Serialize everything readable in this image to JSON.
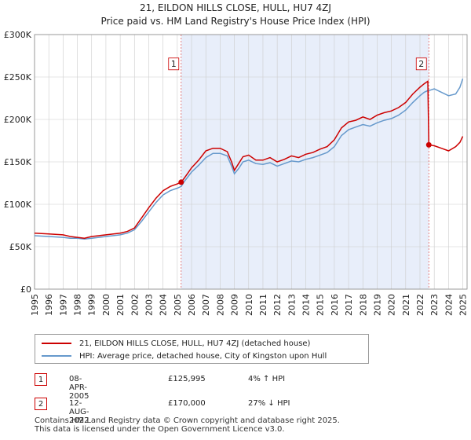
{
  "chart_data": {
    "type": "line",
    "title": "21, EILDON HILLS CLOSE, HULL, HU7 4ZJ",
    "subtitle": "Price paid vs. HM Land Registry's House Price Index (HPI)",
    "xlim": [
      1995,
      2025.3
    ],
    "ylim": [
      0,
      300000
    ],
    "x_ticks": [
      "1995",
      "1996",
      "1997",
      "1998",
      "1999",
      "2000",
      "2001",
      "2002",
      "2003",
      "2004",
      "2005",
      "2006",
      "2007",
      "2008",
      "2009",
      "2010",
      "2011",
      "2012",
      "2013",
      "2014",
      "2015",
      "2016",
      "2017",
      "2018",
      "2019",
      "2020",
      "2021",
      "2022",
      "2023",
      "2024",
      "2025"
    ],
    "y_ticks": [
      {
        "value": 0,
        "label": "£0"
      },
      {
        "value": 50000,
        "label": "£50K"
      },
      {
        "value": 100000,
        "label": "£100K"
      },
      {
        "value": 150000,
        "label": "£150K"
      },
      {
        "value": 200000,
        "label": "£200K"
      },
      {
        "value": 250000,
        "label": "£250K"
      },
      {
        "value": 300000,
        "label": "£300K"
      }
    ],
    "shaded_period": [
      2005.27,
      2022.62
    ],
    "series": [
      {
        "name": "21, EILDON HILLS CLOSE, HULL, HU7 4ZJ (detached house)",
        "color": "#cc0000",
        "x": [
          1995,
          1996,
          1997,
          1997.5,
          1998,
          1998.5,
          1999,
          2000,
          2001,
          2001.5,
          2002,
          2002.5,
          2003,
          2003.5,
          2004,
          2004.5,
          2005,
          2005.27,
          2005.5,
          2006,
          2006.5,
          2007,
          2007.5,
          2008,
          2008.5,
          2008.8,
          2009,
          2009.3,
          2009.6,
          2010,
          2010.5,
          2011,
          2011.5,
          2012,
          2012.5,
          2013,
          2013.5,
          2014,
          2014.5,
          2015,
          2015.5,
          2016,
          2016.5,
          2017,
          2017.5,
          2018,
          2018.5,
          2019,
          2019.5,
          2020,
          2020.5,
          2021,
          2021.5,
          2022,
          2022.3,
          2022.55,
          2022.62,
          2023,
          2023.5,
          2024,
          2024.5,
          2024.8,
          2025
        ],
        "values": [
          66000,
          65000,
          64000,
          62000,
          61000,
          60000,
          62000,
          64000,
          66000,
          68000,
          72000,
          84000,
          96000,
          107000,
          116000,
          121000,
          124000,
          125995,
          131000,
          143000,
          152000,
          163000,
          166000,
          166000,
          162000,
          150000,
          140000,
          148000,
          156000,
          158000,
          152000,
          152000,
          155000,
          150000,
          153000,
          157000,
          155000,
          159000,
          161000,
          165000,
          168000,
          176000,
          190000,
          197000,
          199000,
          203000,
          200000,
          205000,
          208000,
          210000,
          214000,
          220000,
          230000,
          238000,
          242000,
          245000,
          170000,
          169000,
          166000,
          163000,
          168000,
          173000,
          180000
        ]
      },
      {
        "name": "HPI: Average price, detached house, City of Kingston upon Hull",
        "color": "#6699cc",
        "x": [
          1995,
          1996,
          1997,
          1997.5,
          1998,
          1998.5,
          1999,
          2000,
          2001,
          2001.5,
          2002,
          2002.5,
          2003,
          2003.5,
          2004,
          2004.5,
          2005,
          2005.27,
          2005.5,
          2006,
          2006.5,
          2007,
          2007.5,
          2008,
          2008.5,
          2008.8,
          2009,
          2009.3,
          2009.6,
          2010,
          2010.5,
          2011,
          2011.5,
          2012,
          2012.5,
          2013,
          2013.5,
          2014,
          2014.5,
          2015,
          2015.5,
          2016,
          2016.5,
          2017,
          2017.5,
          2018,
          2018.5,
          2019,
          2019.5,
          2020,
          2020.5,
          2021,
          2021.5,
          2022,
          2022.3,
          2022.55,
          2022.62,
          2023,
          2023.5,
          2024,
          2024.5,
          2024.8,
          2025
        ],
        "values": [
          63000,
          62000,
          61000,
          60000,
          60000,
          59000,
          60000,
          62000,
          64000,
          66000,
          70000,
          80000,
          91000,
          102000,
          111000,
          116000,
          119000,
          121000,
          127000,
          138000,
          146000,
          155000,
          160000,
          160000,
          157000,
          145000,
          136000,
          142000,
          150000,
          152000,
          148000,
          147000,
          149000,
          145000,
          148000,
          151000,
          150000,
          153000,
          155000,
          158000,
          161000,
          168000,
          181000,
          188000,
          191000,
          194000,
          192000,
          196000,
          199000,
          201000,
          205000,
          211000,
          220000,
          228000,
          232000,
          234000,
          234000,
          236000,
          232000,
          228000,
          230000,
          238000,
          248000
        ]
      }
    ],
    "markers": [
      {
        "label": "1",
        "x": 2005.27,
        "y": 125995,
        "box_y": 265000
      },
      {
        "label": "2",
        "x": 2022.62,
        "y": 170000,
        "box_y": 265000
      }
    ],
    "legend": [
      {
        "label": "21, EILDON HILLS CLOSE, HULL, HU7 4ZJ (detached house)",
        "color": "#cc0000"
      },
      {
        "label": "HPI: Average price, detached house, City of Kingston upon Hull",
        "color": "#6699cc"
      }
    ],
    "legend_position": "bottom"
  },
  "sales": [
    {
      "num": "1",
      "date": "08-APR-2005",
      "price": "£125,995",
      "hpi": "4% ↑ HPI"
    },
    {
      "num": "2",
      "date": "12-AUG-2022",
      "price": "£170,000",
      "hpi": "27% ↓ HPI"
    }
  ],
  "footer": {
    "line1": "Contains HM Land Registry data © Crown copyright and database right 2025.",
    "line2": "This data is licensed under the Open Government Licence v3.0."
  },
  "colors": {
    "property": "#cc0000",
    "hpi": "#6699cc",
    "shade": "#e8eefa",
    "grid": "#cccccc"
  }
}
